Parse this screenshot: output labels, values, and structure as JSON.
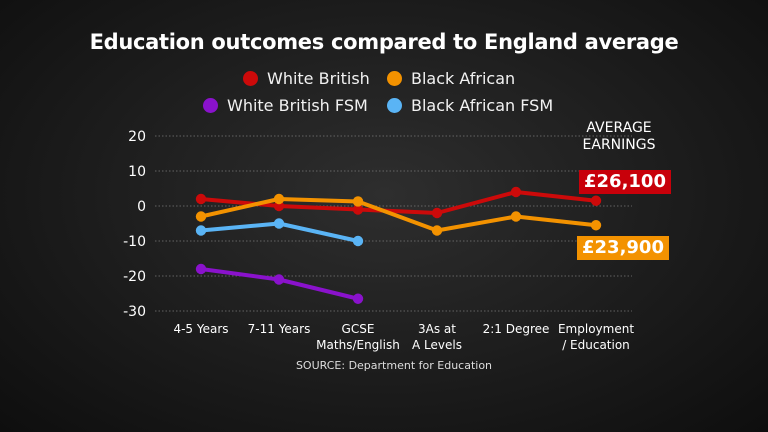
{
  "title": "Education outcomes compared to England average",
  "legend": [
    {
      "label": "White British",
      "color": "#cc0a0a"
    },
    {
      "label": "Black African",
      "color": "#f39200"
    },
    {
      "label": "White British FSM",
      "color": "#8a12cc"
    },
    {
      "label": "Black African FSM",
      "color": "#5ab4f5"
    }
  ],
  "average_earnings_label": "AVERAGE EARNINGS",
  "earnings": {
    "white_british": "£26,100",
    "black_african": "£23,900"
  },
  "source": "SOURCE: Department for Education",
  "chart_data": {
    "type": "line",
    "title": "Education outcomes compared to England average",
    "xlabel": "",
    "ylabel": "",
    "ylim": [
      -30,
      20
    ],
    "yticks": [
      "20",
      "10",
      "0",
      "-10",
      "-20",
      "-30"
    ],
    "ytick_values": [
      20,
      10,
      0,
      -10,
      -20,
      -30
    ],
    "grid": true,
    "categories": [
      "4-5 Years",
      "7-11 Years",
      "GCSE Maths/English",
      "3As at A Levels",
      "2:1 Degree",
      "Employment / Education"
    ],
    "category_lines": [
      [
        "4-5 Years"
      ],
      [
        "7-11 Years"
      ],
      [
        "GCSE",
        "Maths/English"
      ],
      [
        "3As at",
        "A Levels"
      ],
      [
        "2:1 Degree"
      ],
      [
        "Employment",
        "/ Education"
      ]
    ],
    "series": [
      {
        "name": "White British",
        "color": "#cc0a0a",
        "values": [
          2,
          0,
          -1,
          -2,
          4,
          1.5
        ]
      },
      {
        "name": "Black African",
        "color": "#f39200",
        "values": [
          -3,
          2,
          1.3,
          -7,
          -3,
          -5.5
        ]
      },
      {
        "name": "White British FSM",
        "color": "#8a12cc",
        "values": [
          -18,
          -21,
          -26.5,
          null,
          null,
          null
        ]
      },
      {
        "name": "Black African FSM",
        "color": "#5ab4f5",
        "values": [
          -7,
          -5,
          -10,
          null,
          null,
          null
        ]
      }
    ]
  }
}
